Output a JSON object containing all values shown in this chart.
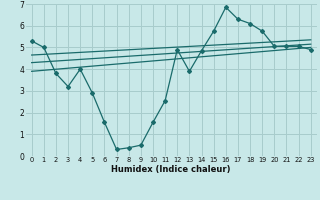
{
  "title": "",
  "xlabel": "Humidex (Indice chaleur)",
  "bg_color": "#c8e8e8",
  "grid_color": "#a8cccc",
  "line_color": "#1a6b6b",
  "xlim": [
    -0.5,
    23.5
  ],
  "ylim": [
    0,
    7
  ],
  "xticks": [
    0,
    1,
    2,
    3,
    4,
    5,
    6,
    7,
    8,
    9,
    10,
    11,
    12,
    13,
    14,
    15,
    16,
    17,
    18,
    19,
    20,
    21,
    22,
    23
  ],
  "yticks": [
    0,
    1,
    2,
    3,
    4,
    5,
    6,
    7
  ],
  "series1_x": [
    0,
    1,
    2,
    3,
    4,
    5,
    6,
    7,
    8,
    9,
    10,
    11,
    12,
    13,
    14,
    15,
    16,
    17,
    18,
    19,
    20,
    21,
    22,
    23
  ],
  "series1_y": [
    5.3,
    5.0,
    3.8,
    3.2,
    4.0,
    2.9,
    1.55,
    0.3,
    0.38,
    0.5,
    1.55,
    2.55,
    4.9,
    3.9,
    4.85,
    5.75,
    6.85,
    6.3,
    6.1,
    5.75,
    5.05,
    5.05,
    5.05,
    4.9
  ],
  "line1_x": [
    0,
    23
  ],
  "line1_y": [
    3.9,
    5.0
  ],
  "line2_x": [
    0,
    23
  ],
  "line2_y": [
    4.3,
    5.15
  ],
  "line3_x": [
    0,
    23
  ],
  "line3_y": [
    4.65,
    5.35
  ]
}
